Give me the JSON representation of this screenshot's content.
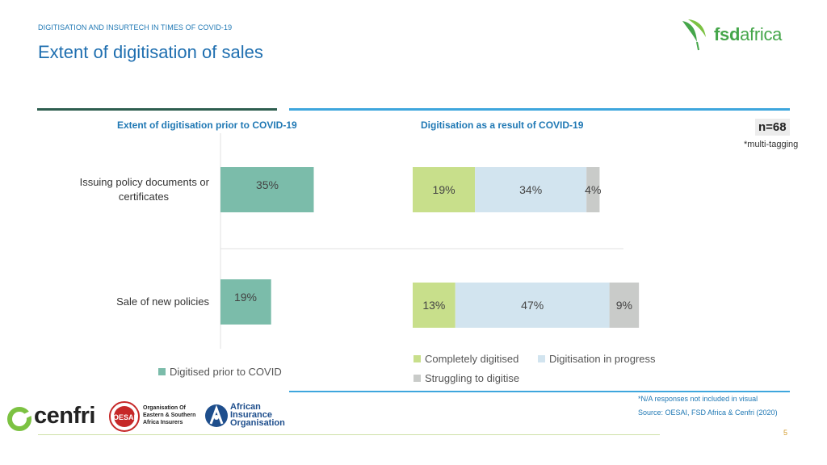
{
  "header": {
    "kicker": "DIGITISATION AND INSURTECH IN TIMES OF COVID-19",
    "title": "Extent of digitisation of sales"
  },
  "logo": {
    "word_bold": "fsd",
    "word_regular": "africa",
    "icon": "fsd-africa-leaf-icon"
  },
  "sample": {
    "n": "n=68",
    "note": "*multi-tagging"
  },
  "chart_data": [
    {
      "type": "bar",
      "orientation": "horizontal",
      "title": "Extent of digitisation prior to COVID-19",
      "categories": [
        "Issuing policy documents or certificates",
        "Sale of new policies"
      ],
      "category_lines": [
        [
          "Issuing policy documents or",
          "certificates"
        ],
        [
          "Sale of new policies"
        ]
      ],
      "series": [
        {
          "name": "Digitised prior to COVID",
          "values": [
            35,
            19
          ],
          "labels": [
            "35%",
            "19%"
          ],
          "color": "#7bbcaa"
        }
      ],
      "xlim": [
        0,
        100
      ],
      "legend": "bottom"
    },
    {
      "type": "bar",
      "orientation": "horizontal",
      "stacked": true,
      "title": "Digitisation as a result of COVID-19",
      "categories": [
        "Issuing policy documents or certificates",
        "Sale of new policies"
      ],
      "series": [
        {
          "name": "Completely digitised",
          "values": [
            19,
            13
          ],
          "labels": [
            "19%",
            "13%"
          ],
          "color": "#c8df8b"
        },
        {
          "name": "Digitisation in progress",
          "values": [
            34,
            47
          ],
          "labels": [
            "34%",
            "47%"
          ],
          "color": "#d2e4ef"
        },
        {
          "name": "Struggling to digitise",
          "values": [
            4,
            9
          ],
          "labels": [
            "4%",
            "9%"
          ],
          "color": "#c9cbc9"
        }
      ],
      "xlim": [
        0,
        100
      ],
      "legend": "bottom"
    }
  ],
  "footer": {
    "na_note": "*N/A responses not included in visual",
    "source": "Source: OESAI, FSD Africa & Cenfri (2020)",
    "page": "5",
    "partners": {
      "cenfri": "cenfri",
      "oesai_lines": [
        "Organisation Of",
        "Eastern & Southern",
        "Africa Insurers"
      ],
      "oesai_seal": "OESAI",
      "aio_lines": [
        "African",
        "Insurance",
        "Organisation"
      ]
    }
  },
  "colors": {
    "accent_blue": "#1f78b4",
    "rule_green": "#2e5e4f",
    "rule_blue": "#3ea6dd",
    "brand_green": "#45a64a"
  }
}
